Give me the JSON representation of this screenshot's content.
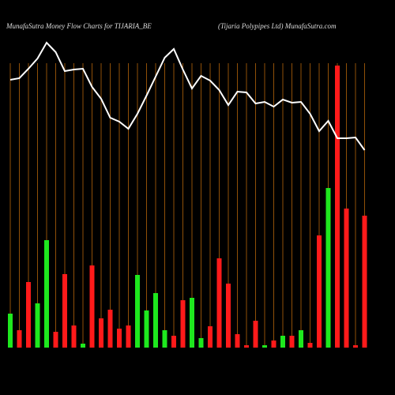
{
  "chart_data": {
    "type": "bar",
    "title": "MunafaSutra  Money Flow  Charts for TIJARIA_BE",
    "subtitle": "(Tijaria  Polypipes Ltd) MunafaSutra.com",
    "ylim": [
      0,
      440
    ],
    "grid_color": "#b5650a",
    "bars": {
      "values": [
        43,
        22,
        83,
        56,
        136,
        20,
        93,
        28,
        5,
        104,
        37,
        48,
        24,
        28,
        92,
        47,
        69,
        22,
        15,
        60,
        63,
        12,
        27,
        113,
        81,
        17,
        3,
        34,
        3,
        9,
        15,
        15,
        22,
        6,
        142,
        202,
        357,
        176,
        3,
        167
      ],
      "colors": [
        "#1ee81e",
        "#ff1a1a",
        "#ff1a1a",
        "#1ee81e",
        "#1ee81e",
        "#ff1a1a",
        "#ff1a1a",
        "#ff1a1a",
        "#1ee81e",
        "#ff1a1a",
        "#ff1a1a",
        "#ff1a1a",
        "#ff1a1a",
        "#ff1a1a",
        "#1ee81e",
        "#1ee81e",
        "#1ee81e",
        "#1ee81e",
        "#ff1a1a",
        "#ff1a1a",
        "#1ee81e",
        "#1ee81e",
        "#ff1a1a",
        "#ff1a1a",
        "#ff1a1a",
        "#ff1a1a",
        "#ff1a1a",
        "#ff1a1a",
        "#1ee81e",
        "#ff1a1a",
        "#1ee81e",
        "#ff1a1a",
        "#1ee81e",
        "#ff1a1a",
        "#ff1a1a",
        "#1ee81e",
        "#ff1a1a",
        "#ff1a1a",
        "#ff1a1a",
        "#ff1a1a"
      ]
    },
    "line": {
      "color": "#ffffff",
      "values": [
        339,
        341,
        353,
        366,
        386,
        374,
        350,
        352,
        353,
        330,
        315,
        291,
        286,
        277,
        296,
        319,
        343,
        367,
        378,
        352,
        328,
        344,
        338,
        326,
        307,
        324,
        323,
        309,
        311,
        305,
        314,
        310,
        311,
        296,
        274,
        287,
        265,
        265,
        266,
        250
      ]
    }
  }
}
